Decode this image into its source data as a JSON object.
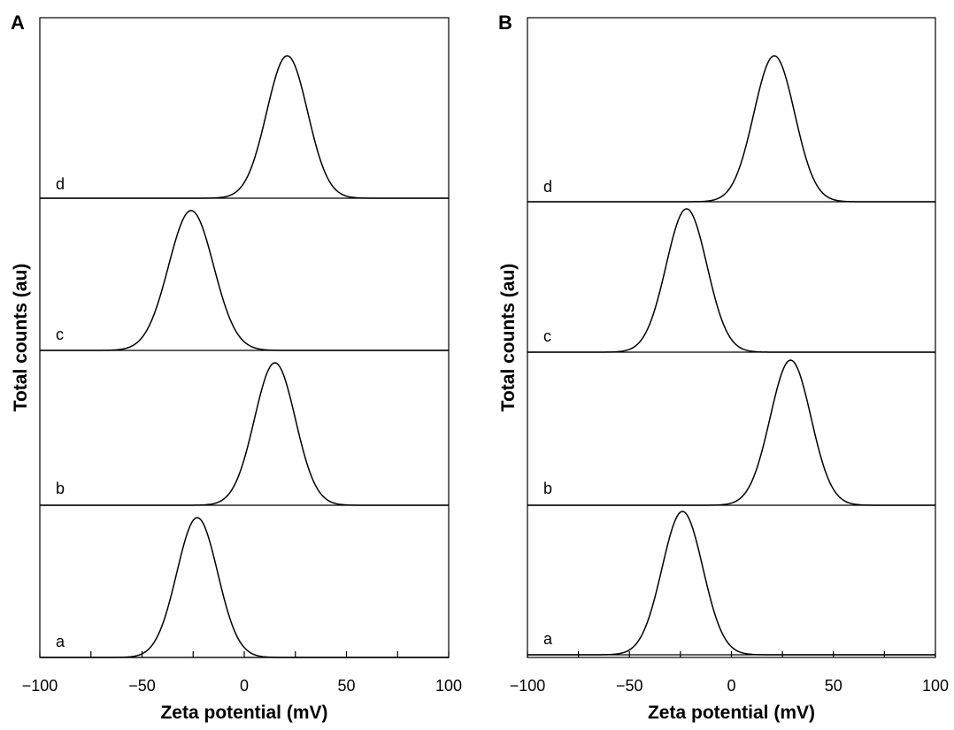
{
  "chart_data": [
    {
      "type": "line",
      "panel_label": "A",
      "xlabel": "Zeta potential (mV)",
      "ylabel": "Total counts (au)",
      "xlim": [
        -100,
        100
      ],
      "xticks": [
        -100,
        -75,
        -50,
        -25,
        0,
        25,
        50,
        75,
        100
      ],
      "xtick_labels": [
        "−100",
        "",
        "−50",
        "",
        "0",
        "",
        "50",
        "",
        "100"
      ],
      "grid": false,
      "series": [
        {
          "name": "a",
          "peak_mV": -23,
          "width_mV": 10
        },
        {
          "name": "b",
          "peak_mV": 15,
          "width_mV": 10
        },
        {
          "name": "c",
          "peak_mV": -26,
          "width_mV": 11
        },
        {
          "name": "d",
          "peak_mV": 21,
          "width_mV": 10
        }
      ]
    },
    {
      "type": "line",
      "panel_label": "B",
      "xlabel": "Zeta potential (mV)",
      "ylabel": "Total counts (au)",
      "xlim": [
        -100,
        100
      ],
      "xticks": [
        -100,
        -75,
        -50,
        -25,
        0,
        25,
        50,
        75,
        100
      ],
      "xtick_labels": [
        "−100",
        "",
        "−50",
        "",
        "0",
        "",
        "50",
        "",
        "100"
      ],
      "grid": false,
      "series": [
        {
          "name": "a",
          "peak_mV": -24,
          "width_mV": 10
        },
        {
          "name": "b",
          "peak_mV": 29,
          "width_mV": 10
        },
        {
          "name": "c",
          "peak_mV": -22,
          "width_mV": 10
        },
        {
          "name": "d",
          "peak_mV": 21,
          "width_mV": 10
        }
      ]
    }
  ]
}
